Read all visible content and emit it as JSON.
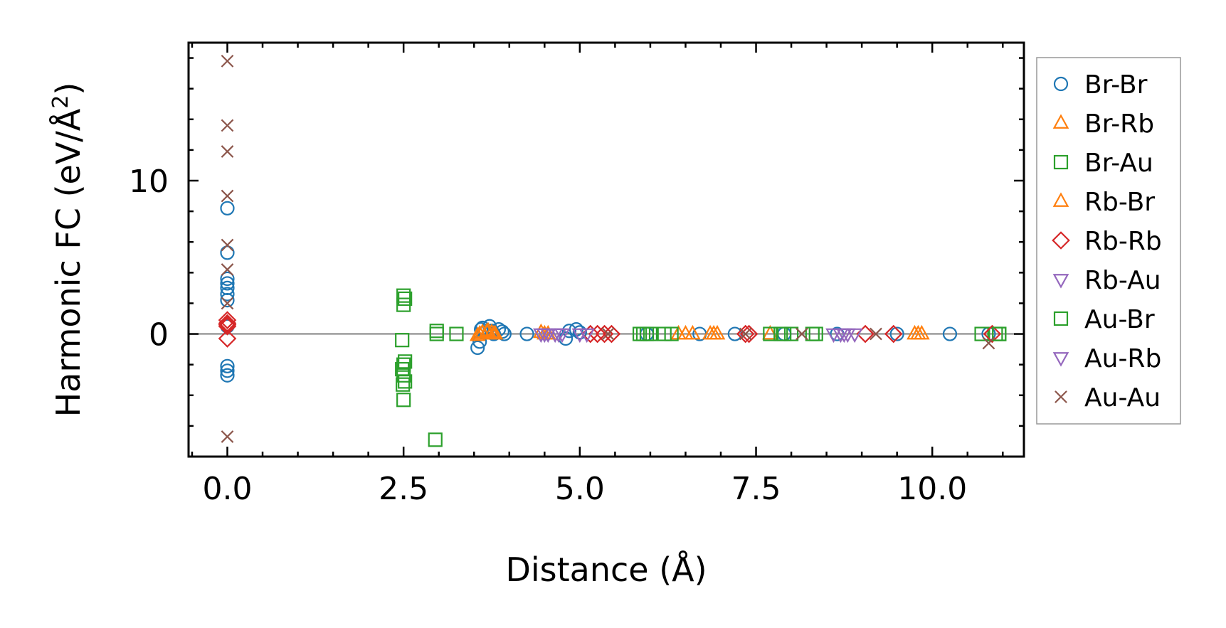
{
  "chart_data": {
    "type": "scatter",
    "title": "",
    "xlabel": "Distance (Å)",
    "ylabel": "Harmonic FC (eV/Å²)",
    "ylabel_main": "Harmonic FC (eV/Å",
    "ylabel_sup": "2",
    "ylabel_close": ")",
    "xlim": [
      -0.55,
      11.3
    ],
    "ylim": [
      -8,
      19
    ],
    "xticks": [
      0.0,
      2.5,
      5.0,
      7.5,
      10.0
    ],
    "xtick_labels": [
      "0.0",
      "2.5",
      "5.0",
      "7.5",
      "10.0"
    ],
    "yticks": [
      0,
      10
    ],
    "ytick_labels": [
      "0",
      "10"
    ],
    "zero_line": true,
    "legend_position": "outside-right",
    "series": [
      {
        "name": "Br-Br",
        "marker": "circle",
        "color": "#1f77b4",
        "x": [
          0,
          0,
          0,
          0,
          0,
          0,
          0,
          0,
          0,
          0,
          0,
          3.55,
          3.58,
          3.6,
          3.62,
          3.65,
          3.72,
          3.75,
          3.78,
          3.85,
          3.9,
          3.93,
          4.25,
          4.8,
          4.85,
          4.95,
          5.0,
          5.95,
          6.7,
          7.2,
          7.9,
          8.65,
          9.5,
          10.25,
          10.8
        ],
        "y": [
          8.2,
          5.3,
          3.6,
          3.3,
          3.0,
          2.6,
          2.2,
          -2.1,
          -2.4,
          -2.7,
          0.5,
          -0.9,
          -0.5,
          0.3,
          0.4,
          0.1,
          0.5,
          0.2,
          0.0,
          0.3,
          0.15,
          0.0,
          0.0,
          -0.3,
          0.2,
          0.3,
          0.1,
          0.0,
          0.0,
          0.0,
          0.0,
          0.0,
          0.0,
          0.0,
          0.0
        ]
      },
      {
        "name": "Br-Rb",
        "marker": "triangle-up",
        "color": "#ff7f0e",
        "x": [
          3.55,
          3.62,
          3.7,
          3.75,
          3.8,
          4.45,
          4.55,
          6.4,
          6.5,
          6.85,
          6.95,
          7.7,
          9.75,
          9.85
        ],
        "y": [
          -0.1,
          0.1,
          0.2,
          0.1,
          0.0,
          0.1,
          0.0,
          0.0,
          0.0,
          0.0,
          0.0,
          0.0,
          0.0,
          0.0
        ]
      },
      {
        "name": "Br-Au",
        "marker": "square",
        "color": "#2ca02c",
        "x": [
          2.5,
          2.52,
          2.5,
          2.48,
          2.5,
          2.52,
          2.48,
          2.5,
          2.52,
          2.49,
          2.5,
          2.95,
          2.97,
          3.25,
          5.85,
          5.95,
          6.2,
          6.3,
          7.7,
          7.9,
          8.3,
          8.35,
          10.7,
          10.9,
          10.95
        ],
        "y": [
          2.5,
          2.3,
          1.9,
          -0.4,
          -2.0,
          -1.8,
          -2.3,
          -2.7,
          -3.1,
          -3.3,
          -4.3,
          -6.9,
          0.2,
          0.0,
          0.0,
          0.0,
          0.0,
          0.0,
          0.0,
          0.0,
          0.0,
          0.0,
          0.0,
          0.0,
          0.0
        ]
      },
      {
        "name": "Rb-Br",
        "marker": "triangle-up",
        "color": "#ff7f0e",
        "x": [
          3.58,
          3.68,
          3.78,
          4.5,
          6.6,
          6.9,
          9.8
        ],
        "y": [
          0.0,
          0.15,
          0.0,
          0.0,
          0.0,
          0.0,
          0.0
        ]
      },
      {
        "name": "Rb-Rb",
        "marker": "diamond",
        "color": "#d62728",
        "x": [
          0,
          0,
          0,
          0,
          0,
          5.15,
          5.25,
          5.35,
          5.45,
          7.35,
          7.4,
          9.05,
          9.45,
          10.85
        ],
        "y": [
          0.9,
          0.7,
          0.5,
          0.6,
          -0.3,
          0.0,
          0.0,
          0.0,
          0.0,
          0.0,
          0.0,
          0.0,
          0.0,
          0.0
        ]
      },
      {
        "name": "Rb-Au",
        "marker": "triangle-down",
        "color": "#9467bd",
        "x": [
          4.45,
          4.55,
          4.65,
          4.75,
          5.0,
          5.1,
          8.6,
          8.7,
          8.8,
          8.9
        ],
        "y": [
          0.0,
          0.0,
          0.0,
          0.0,
          0.0,
          0.0,
          0.0,
          0.0,
          0.0,
          0.0
        ]
      },
      {
        "name": "Au-Br",
        "marker": "square",
        "color": "#2ca02c",
        "x": [
          2.97,
          5.9,
          6.0,
          7.85,
          8.0,
          10.95
        ],
        "y": [
          0.0,
          0.0,
          0.0,
          0.0,
          0.0,
          0.0
        ]
      },
      {
        "name": "Au-Rb",
        "marker": "triangle-down",
        "color": "#9467bd",
        "x": [
          4.5,
          4.7,
          8.75
        ],
        "y": [
          0.0,
          0.0,
          0.0
        ]
      },
      {
        "name": "Au-Au",
        "marker": "x",
        "color": "#8c564b",
        "x": [
          0,
          0,
          0,
          0,
          0,
          0,
          0,
          0,
          5.4,
          7.35,
          8.15,
          9.2,
          10.8
        ],
        "y": [
          17.8,
          13.6,
          11.9,
          9.0,
          5.8,
          4.2,
          2.0,
          -6.7,
          0.0,
          0.0,
          0.0,
          0.0,
          -0.6
        ]
      }
    ]
  }
}
